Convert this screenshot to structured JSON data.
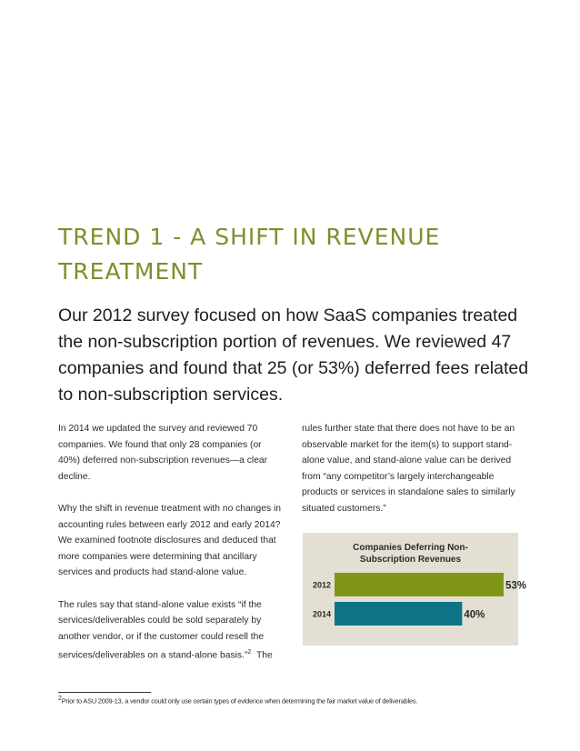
{
  "heading": "TREND 1 - A SHIFT IN REVENUE TREATMENT",
  "lead": "Our 2012 survey focused on how SaaS companies treated the non-subscription portion of revenues. We reviewed 47 companies and found that 25 (or 53%) deferred fees related to non-subscription services.",
  "left_column": [
    "In 2014 we updated the survey and reviewed 70 companies. We found that only 28 companies (or 40%) deferred non-subscription revenues—a clear decline.",
    "Why the shift in revenue treatment with no changes in accounting rules between early 2012 and early 2014? We examined footnote disclosures and deduced that more companies were determining that ancillary services and products had stand-alone value."
  ],
  "left_column_last": {
    "text": "The rules say that stand-alone value exists “if the services/deliverables could be sold separately by another vendor, or if the customer could resell the services/deliverables on a stand-alone basis.”",
    "footnote_ref": "2",
    "continuation": "The"
  },
  "right_column": [
    "rules further state that there does not have to be an observable market for the item(s) to support stand-alone value, and stand-alone value can be derived from “any competitor’s largely interchangeable products or services in standalone sales to similarly situated customers.”"
  ],
  "chart_data": {
    "type": "bar",
    "orientation": "horizontal",
    "title": "Companies Deferring Non-Subscription Revenues",
    "title_lines": [
      "Companies Deferring Non-",
      "Subscription Revenues"
    ],
    "categories": [
      "2012",
      "2014"
    ],
    "values": [
      53,
      40
    ],
    "value_labels": [
      "53%",
      "40%"
    ],
    "colors": [
      "#809617",
      "#0c7485"
    ],
    "background": "#e3dfd2",
    "xlim": [
      0,
      57
    ],
    "grid": false,
    "legend": "none"
  },
  "footnote": {
    "marker": "2",
    "text": "Prior to ASU 2009-13, a vendor could only use certain types of evidence when determining the fair market value of deliverables."
  },
  "colors": {
    "heading": "#7f8f2a",
    "text": "#222222"
  }
}
